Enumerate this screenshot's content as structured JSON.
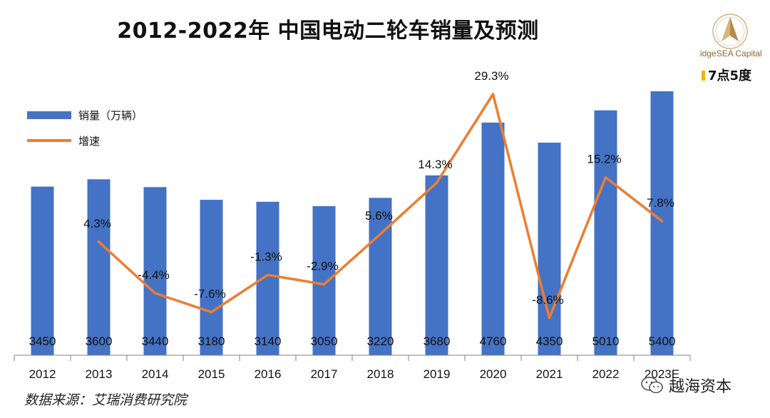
{
  "title": "2012-2022年 中国电动二轮车销量及预测",
  "logo": {
    "text": "idgeSEA Capital",
    "icon": "compass-logo-icon"
  },
  "brand_tag": "7点5度",
  "legend": {
    "bar_label": "销量（万辆）",
    "line_label": "增速"
  },
  "source": "数据来源：艾瑞消费研究院",
  "watermark": {
    "icon": "wechat-icon",
    "text": "越海资本"
  },
  "colors": {
    "bar": "#4472c4",
    "line": "#ed7d31",
    "text": "#111111"
  },
  "chart_data": {
    "type": "bar",
    "categories": [
      "2012",
      "2013",
      "2014",
      "2015",
      "2016",
      "2017",
      "2018",
      "2019",
      "2020",
      "2021",
      "2022",
      "2023E"
    ],
    "series": [
      {
        "name": "销量（万辆）",
        "type": "bar",
        "values": [
          3450,
          3600,
          3440,
          3180,
          3140,
          3050,
          3220,
          3680,
          4760,
          4350,
          5010,
          5400
        ],
        "labels": [
          "3450",
          "3600",
          "3440",
          "3180",
          "3140",
          "3050",
          "3220",
          "3680",
          "4760",
          "4350",
          "5010",
          "5400"
        ]
      },
      {
        "name": "增速",
        "type": "line",
        "values": [
          null,
          4.3,
          -4.4,
          -7.6,
          -1.3,
          -2.9,
          5.6,
          14.3,
          29.3,
          -8.6,
          15.2,
          7.8
        ],
        "labels": [
          "",
          "4.3%",
          "-4.4%",
          "-7.6%",
          "-1.3%",
          "-2.9%",
          "5.6%",
          "14.3%",
          "29.3%",
          "-8.6%",
          "15.2%",
          "7.8%"
        ]
      }
    ],
    "grid": false,
    "legend_position": "top-left"
  }
}
